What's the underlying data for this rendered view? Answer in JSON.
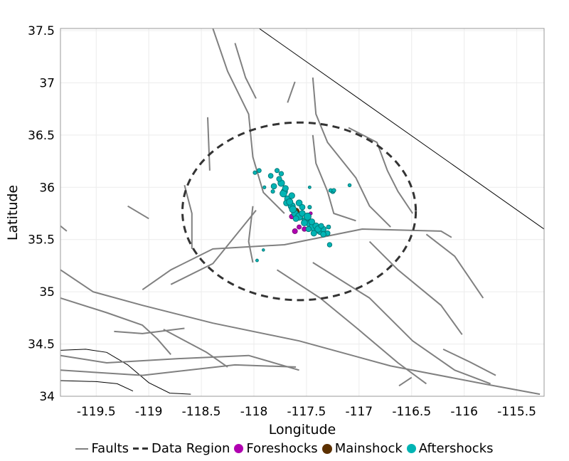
{
  "chart_data": {
    "type": "scatter",
    "xlabel": "Longitude",
    "ylabel": "Latitude",
    "xlim": [
      -119.84,
      -115.24
    ],
    "ylim": [
      34.0,
      37.52
    ],
    "xticks": [
      -119.5,
      -119,
      -118.5,
      -118,
      -117.5,
      -117,
      -116.5,
      -116,
      -115.5
    ],
    "yticks": [
      34,
      34.5,
      35,
      35.5,
      36,
      36.5,
      37,
      37.5
    ],
    "grid": true,
    "legend_position": "bottom",
    "legend": [
      "Faults",
      "Data Region",
      "Foreshocks",
      "Mainshock",
      "Aftershocks"
    ],
    "colors": {
      "faults": "#808080",
      "region": "#333333",
      "foreshocks": "#b000b0",
      "mainshock": "#5c3000",
      "aftershocks": "#00b4b4",
      "aftershock_edge": "#007373",
      "boundary": "#000000"
    },
    "data_region": {
      "center": [
        -117.57,
        35.77
      ],
      "radius_lon_deg": 1.11,
      "radius_lat_deg": 0.85
    },
    "boundaries": [
      [
        [
          -117.95,
          37.52
        ],
        [
          -115.24,
          35.6
        ]
      ],
      [
        [
          -119.84,
          34.44
        ],
        [
          -119.6,
          34.45
        ],
        [
          -119.4,
          34.42
        ],
        [
          -119.2,
          34.3
        ],
        [
          -119.0,
          34.13
        ],
        [
          -118.8,
          34.03
        ],
        [
          -118.6,
          34.02
        ]
      ],
      [
        [
          -119.84,
          34.15
        ],
        [
          -119.5,
          34.14
        ],
        [
          -119.3,
          34.12
        ],
        [
          -119.15,
          34.05
        ]
      ]
    ],
    "faults": [
      [
        [
          -119.06,
          35.02
        ],
        [
          -118.79,
          35.21
        ],
        [
          -118.39,
          35.41
        ],
        [
          -117.71,
          35.45
        ],
        [
          -116.97,
          35.6
        ],
        [
          -116.22,
          35.58
        ],
        [
          -116.12,
          35.52
        ]
      ],
      [
        [
          -119.84,
          35.21
        ],
        [
          -119.53,
          35.0
        ],
        [
          -119.06,
          34.87
        ],
        [
          -118.39,
          34.7
        ],
        [
          -117.57,
          34.53
        ],
        [
          -116.7,
          34.29
        ],
        [
          -115.82,
          34.12
        ],
        [
          -115.28,
          34.02
        ]
      ],
      [
        [
          -118.39,
          37.52
        ],
        [
          -118.25,
          37.11
        ],
        [
          -118.05,
          36.7
        ],
        [
          -118.01,
          36.29
        ],
        [
          -117.91,
          35.95
        ],
        [
          -117.71,
          35.75
        ]
      ],
      [
        [
          -118.44,
          36.67
        ],
        [
          -118.42,
          36.16
        ]
      ],
      [
        [
          -118.18,
          37.38
        ],
        [
          -118.08,
          37.05
        ],
        [
          -117.98,
          36.85
        ]
      ],
      [
        [
          -117.61,
          37.01
        ],
        [
          -117.68,
          36.81
        ]
      ],
      [
        [
          -117.44,
          37.05
        ],
        [
          -117.41,
          36.7
        ],
        [
          -117.3,
          36.43
        ],
        [
          -117.03,
          36.09
        ],
        [
          -116.9,
          35.82
        ],
        [
          -116.7,
          35.62
        ]
      ],
      [
        [
          -117.1,
          36.57
        ],
        [
          -116.83,
          36.43
        ],
        [
          -116.73,
          36.16
        ],
        [
          -116.63,
          35.96
        ],
        [
          -116.49,
          35.75
        ]
      ],
      [
        [
          -117.44,
          36.5
        ],
        [
          -117.41,
          36.23
        ],
        [
          -117.3,
          35.96
        ],
        [
          -117.24,
          35.75
        ],
        [
          -117.03,
          35.68
        ]
      ],
      [
        [
          -118.01,
          35.82
        ],
        [
          -118.05,
          35.48
        ],
        [
          -118.01,
          35.28
        ]
      ],
      [
        [
          -118.66,
          36.02
        ],
        [
          -118.59,
          35.75
        ],
        [
          -118.59,
          35.41
        ]
      ],
      [
        [
          -118.79,
          35.07
        ],
        [
          -118.39,
          35.27
        ],
        [
          -117.98,
          35.78
        ]
      ],
      [
        [
          -117.78,
          35.21
        ],
        [
          -117.37,
          34.94
        ],
        [
          -117.03,
          34.66
        ],
        [
          -116.63,
          34.32
        ],
        [
          -116.36,
          34.12
        ]
      ],
      [
        [
          -117.44,
          35.28
        ],
        [
          -116.9,
          34.94
        ],
        [
          -116.49,
          34.53
        ],
        [
          -116.09,
          34.25
        ],
        [
          -115.75,
          34.12
        ]
      ],
      [
        [
          -116.9,
          35.48
        ],
        [
          -116.63,
          35.21
        ],
        [
          -116.22,
          34.87
        ],
        [
          -116.02,
          34.59
        ]
      ],
      [
        [
          -116.36,
          35.55
        ],
        [
          -116.09,
          35.34
        ],
        [
          -115.82,
          34.94
        ]
      ],
      [
        [
          -119.84,
          34.39
        ],
        [
          -119.4,
          34.32
        ],
        [
          -118.72,
          34.36
        ],
        [
          -118.05,
          34.39
        ],
        [
          -117.57,
          34.25
        ]
      ],
      [
        [
          -119.84,
          34.25
        ],
        [
          -119.06,
          34.2
        ],
        [
          -118.18,
          34.3
        ],
        [
          -117.6,
          34.28
        ]
      ],
      [
        [
          -119.33,
          34.62
        ],
        [
          -119.06,
          34.6
        ],
        [
          -118.66,
          34.65
        ]
      ],
      [
        [
          -119.84,
          34.94
        ],
        [
          -119.4,
          34.8
        ],
        [
          -119.06,
          34.68
        ],
        [
          -118.92,
          34.55
        ],
        [
          -118.79,
          34.4
        ]
      ],
      [
        [
          -118.86,
          34.64
        ],
        [
          -118.45,
          34.42
        ],
        [
          -118.25,
          34.28
        ]
      ],
      [
        [
          -119.84,
          35.63
        ],
        [
          -119.78,
          35.58
        ]
      ],
      [
        [
          -119.2,
          35.82
        ],
        [
          -119.0,
          35.7
        ]
      ],
      [
        [
          -116.2,
          34.45
        ],
        [
          -115.95,
          34.33
        ],
        [
          -115.7,
          34.2
        ]
      ],
      [
        [
          -116.62,
          34.1
        ],
        [
          -116.5,
          34.18
        ]
      ]
    ],
    "aftershocks": [
      [
        -117.99,
        36.14,
        3.0
      ],
      [
        -117.95,
        36.16,
        3.2
      ],
      [
        -117.84,
        36.11,
        3.5
      ],
      [
        -117.81,
        36.01,
        3.8
      ],
      [
        -117.71,
        35.96,
        4.2
      ],
      [
        -117.68,
        35.89,
        4.0
      ],
      [
        -117.64,
        35.82,
        4.5
      ],
      [
        -117.61,
        35.75,
        4.3
      ],
      [
        -117.57,
        35.72,
        4.6
      ],
      [
        -117.54,
        35.75,
        4.0
      ],
      [
        -117.51,
        35.68,
        4.4
      ],
      [
        -117.47,
        35.65,
        4.2
      ],
      [
        -117.44,
        35.62,
        4.7
      ],
      [
        -117.41,
        35.63,
        4.1
      ],
      [
        -117.37,
        35.58,
        4.3
      ],
      [
        -117.34,
        35.6,
        3.9
      ],
      [
        -117.3,
        35.56,
        3.6
      ],
      [
        -117.29,
        35.62,
        3.2
      ],
      [
        -117.72,
        35.94,
        4.4
      ],
      [
        -117.7,
        35.99,
        3.9
      ],
      [
        -117.64,
        35.92,
        4.0
      ],
      [
        -117.57,
        35.85,
        4.1
      ],
      [
        -117.54,
        35.81,
        3.8
      ],
      [
        -117.49,
        35.72,
        4.5
      ],
      [
        -117.45,
        35.67,
        4.0
      ],
      [
        -117.39,
        35.6,
        4.2
      ],
      [
        -117.34,
        35.55,
        3.8
      ],
      [
        -117.28,
        35.45,
        3.4
      ],
      [
        -117.25,
        35.96,
        3.3
      ],
      [
        -117.27,
        35.97,
        3.0
      ],
      [
        -117.24,
        35.97,
        3.1
      ],
      [
        -117.09,
        36.02,
        2.8
      ],
      [
        -117.47,
        36.0,
        2.6
      ],
      [
        -117.47,
        35.81,
        3.0
      ],
      [
        -117.82,
        35.96,
        3.0
      ],
      [
        -117.9,
        36.0,
        2.7
      ],
      [
        -117.91,
        35.4,
        2.5
      ],
      [
        -117.97,
        35.3,
        2.6
      ],
      [
        -117.74,
        36.13,
        3.4
      ],
      [
        -117.78,
        36.16,
        3.3
      ],
      [
        -117.43,
        35.56,
        3.9
      ],
      [
        -117.36,
        35.63,
        3.6
      ],
      [
        -117.74,
        36.04,
        4.3
      ],
      [
        -117.69,
        35.85,
        4.0
      ],
      [
        -117.63,
        35.79,
        4.4
      ],
      [
        -117.6,
        35.7,
        3.9
      ],
      [
        -117.52,
        35.66,
        4.1
      ],
      [
        -117.48,
        35.6,
        3.7
      ],
      [
        -117.66,
        35.86,
        4.2
      ],
      [
        -117.76,
        36.08,
        3.6
      ]
    ],
    "foreshocks": [
      [
        -117.64,
        35.72,
        3.5
      ],
      [
        -117.57,
        35.62,
        3.3
      ],
      [
        -117.52,
        35.6,
        3.4
      ],
      [
        -117.44,
        35.65,
        3.0
      ],
      [
        -117.61,
        35.58,
        3.6
      ],
      [
        -117.46,
        35.75,
        2.8
      ]
    ],
    "mainshock": [
      -117.6,
      35.77,
      7.1
    ]
  }
}
